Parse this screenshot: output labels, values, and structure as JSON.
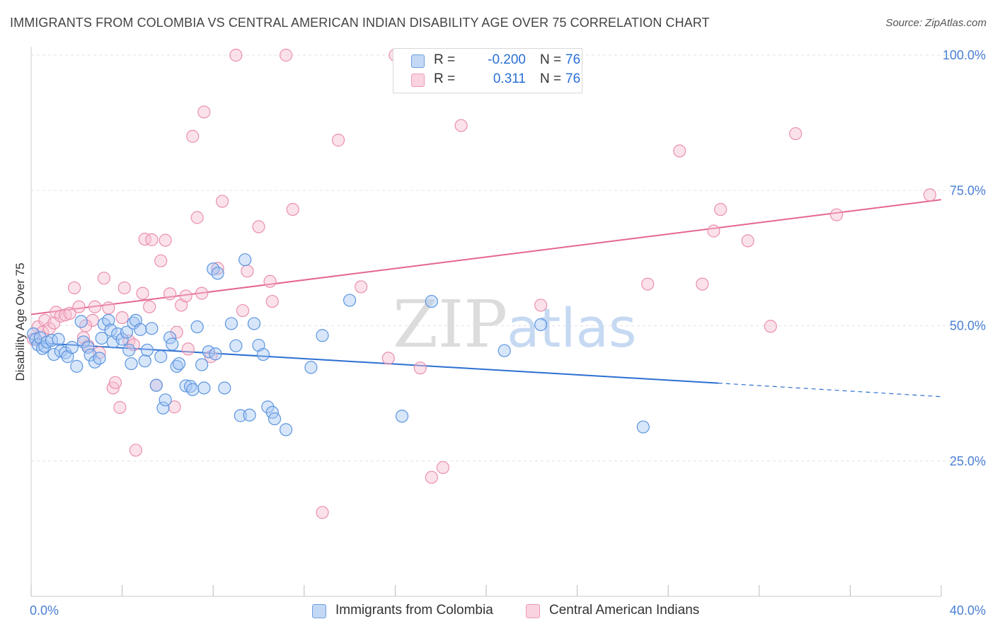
{
  "title": "IMMIGRANTS FROM COLOMBIA VS CENTRAL AMERICAN INDIAN DISABILITY AGE OVER 75 CORRELATION CHART",
  "source": "Source: ZipAtlas.com",
  "watermark": {
    "zip": "ZIP",
    "atlas": "atlas"
  },
  "legend": {
    "rows": [
      {
        "r_label": "R =",
        "r_value": "-0.200",
        "n_label": "N =",
        "n_value": "76"
      },
      {
        "r_label": "R =",
        "r_value": "0.311",
        "n_label": "N =",
        "n_value": "76"
      }
    ]
  },
  "bottom_legend": [
    "Immigrants from Colombia",
    "Central American Indians"
  ],
  "colors": {
    "blue_fill": "#a9c8f3",
    "blue_stroke": "#5b95df",
    "blue_line": "#2d6fd2",
    "pink_fill": "#f7bfd1",
    "pink_stroke": "#ea8fae",
    "pink_line": "#e4668f",
    "tick_text": "#4a7fd4",
    "grid": "#e3e3e3"
  },
  "chart_data": {
    "type": "scatter",
    "title": "IMMIGRANTS FROM COLOMBIA VS CENTRAL AMERICAN INDIAN DISABILITY AGE OVER 75 CORRELATION CHART",
    "xlabel": "",
    "ylabel": "Disability Age Over 75",
    "xlim": [
      0,
      40
    ],
    "ylim": [
      0,
      105
    ],
    "x_tick_labels": [
      "0.0%",
      "40.0%"
    ],
    "y_ticks": [
      25,
      50,
      75,
      100
    ],
    "y_tick_labels": [
      "25.0%",
      "50.0%",
      "75.0%",
      "100.0%"
    ],
    "grid": true,
    "legend_position": "top-center",
    "series": [
      {
        "name": "Immigrants from Colombia",
        "r": -0.2,
        "n": 76,
        "trend": {
          "x0": 0,
          "y0": 46.9,
          "x1": 30.2,
          "y1": 39.4,
          "dashed_to_x": 40,
          "dashed_to_y": 36.9
        },
        "points": [
          [
            0.1,
            48.5
          ],
          [
            0.2,
            47.5
          ],
          [
            0.3,
            46.5
          ],
          [
            0.4,
            47.8
          ],
          [
            0.5,
            45.8
          ],
          [
            0.6,
            46.2
          ],
          [
            0.7,
            47.0
          ],
          [
            0.9,
            47.3
          ],
          [
            1.0,
            44.7
          ],
          [
            1.2,
            47.5
          ],
          [
            1.3,
            45.3
          ],
          [
            1.5,
            45.0
          ],
          [
            1.6,
            44.3
          ],
          [
            1.8,
            46.0
          ],
          [
            2.0,
            42.5
          ],
          [
            2.2,
            50.8
          ],
          [
            2.3,
            47.0
          ],
          [
            2.5,
            46.0
          ],
          [
            2.6,
            44.6
          ],
          [
            2.8,
            43.3
          ],
          [
            3.0,
            44.0
          ],
          [
            3.1,
            47.7
          ],
          [
            3.2,
            50.3
          ],
          [
            3.4,
            51.0
          ],
          [
            3.5,
            49.2
          ],
          [
            3.6,
            47.0
          ],
          [
            3.8,
            48.5
          ],
          [
            4.0,
            47.5
          ],
          [
            4.2,
            48.8
          ],
          [
            4.3,
            45.5
          ],
          [
            4.4,
            43.0
          ],
          [
            4.5,
            50.5
          ],
          [
            4.6,
            51.0
          ],
          [
            4.8,
            49.3
          ],
          [
            5.0,
            43.5
          ],
          [
            5.1,
            45.5
          ],
          [
            5.3,
            49.5
          ],
          [
            5.5,
            39.0
          ],
          [
            5.7,
            44.3
          ],
          [
            5.8,
            34.8
          ],
          [
            5.9,
            36.3
          ],
          [
            6.1,
            47.8
          ],
          [
            6.2,
            46.6
          ],
          [
            6.4,
            42.5
          ],
          [
            6.5,
            43.0
          ],
          [
            6.8,
            38.9
          ],
          [
            7.0,
            38.8
          ],
          [
            7.1,
            38.2
          ],
          [
            7.3,
            49.8
          ],
          [
            7.5,
            42.8
          ],
          [
            7.6,
            38.5
          ],
          [
            7.8,
            45.2
          ],
          [
            8.0,
            60.5
          ],
          [
            8.1,
            44.8
          ],
          [
            8.2,
            59.7
          ],
          [
            8.5,
            38.5
          ],
          [
            8.8,
            50.4
          ],
          [
            9.0,
            46.3
          ],
          [
            9.2,
            33.4
          ],
          [
            9.4,
            62.2
          ],
          [
            9.6,
            33.5
          ],
          [
            9.8,
            50.4
          ],
          [
            10.0,
            46.4
          ],
          [
            10.2,
            44.7
          ],
          [
            10.4,
            35.0
          ],
          [
            10.6,
            34.0
          ],
          [
            10.7,
            32.8
          ],
          [
            11.2,
            30.8
          ],
          [
            12.3,
            42.3
          ],
          [
            12.8,
            48.2
          ],
          [
            14.0,
            54.7
          ],
          [
            16.3,
            33.3
          ],
          [
            17.6,
            54.5
          ],
          [
            20.8,
            45.4
          ],
          [
            22.4,
            50.2
          ],
          [
            26.9,
            31.3
          ]
        ]
      },
      {
        "name": "Central American Indians",
        "r": 0.311,
        "n": 76,
        "trend": {
          "x0": 0,
          "y0": 52.1,
          "x1": 40,
          "y1": 73.3
        },
        "points": [
          [
            0.1,
            47.5
          ],
          [
            0.3,
            49.8
          ],
          [
            0.5,
            48.8
          ],
          [
            0.6,
            51.0
          ],
          [
            0.8,
            49.5
          ],
          [
            1.0,
            50.5
          ],
          [
            1.1,
            52.5
          ],
          [
            1.3,
            51.8
          ],
          [
            1.5,
            52.0
          ],
          [
            1.7,
            52.3
          ],
          [
            1.9,
            57.0
          ],
          [
            2.1,
            53.5
          ],
          [
            2.3,
            47.8
          ],
          [
            2.5,
            46.3
          ],
          [
            2.7,
            51.0
          ],
          [
            2.8,
            53.5
          ],
          [
            3.0,
            45.0
          ],
          [
            3.2,
            58.8
          ],
          [
            3.4,
            53.3
          ],
          [
            3.6,
            38.5
          ],
          [
            3.7,
            39.5
          ],
          [
            3.9,
            34.9
          ],
          [
            4.1,
            57.0
          ],
          [
            4.3,
            47.2
          ],
          [
            4.5,
            46.5
          ],
          [
            4.6,
            27.0
          ],
          [
            4.9,
            56.0
          ],
          [
            5.0,
            66.0
          ],
          [
            5.2,
            53.5
          ],
          [
            5.3,
            65.9
          ],
          [
            5.5,
            39.0
          ],
          [
            5.7,
            62.0
          ],
          [
            5.9,
            65.8
          ],
          [
            6.1,
            55.9
          ],
          [
            6.3,
            35.0
          ],
          [
            6.4,
            48.8
          ],
          [
            6.6,
            53.8
          ],
          [
            6.8,
            55.5
          ],
          [
            7.1,
            85.0
          ],
          [
            7.3,
            70.0
          ],
          [
            7.5,
            56.0
          ],
          [
            7.6,
            89.5
          ],
          [
            7.9,
            44.3
          ],
          [
            8.2,
            60.6
          ],
          [
            8.4,
            73.0
          ],
          [
            9.0,
            100.0
          ],
          [
            9.3,
            52.8
          ],
          [
            9.5,
            60.1
          ],
          [
            10.0,
            68.3
          ],
          [
            10.5,
            58.2
          ],
          [
            10.6,
            54.5
          ],
          [
            11.2,
            100.0
          ],
          [
            11.5,
            71.5
          ],
          [
            12.8,
            15.5
          ],
          [
            13.5,
            84.3
          ],
          [
            14.5,
            57.2
          ],
          [
            15.7,
            44.0
          ],
          [
            16.0,
            100.0
          ],
          [
            17.1,
            42.2
          ],
          [
            17.6,
            22.0
          ],
          [
            18.1,
            23.8
          ],
          [
            18.9,
            87.0
          ],
          [
            22.4,
            53.8
          ],
          [
            27.1,
            57.7
          ],
          [
            28.5,
            82.3
          ],
          [
            29.5,
            57.7
          ],
          [
            30.0,
            67.5
          ],
          [
            30.3,
            71.5
          ],
          [
            31.5,
            65.7
          ],
          [
            32.5,
            49.9
          ],
          [
            33.6,
            85.5
          ],
          [
            35.4,
            70.5
          ],
          [
            39.5,
            74.2
          ],
          [
            4.0,
            51.5
          ],
          [
            6.9,
            45.7
          ],
          [
            2.4,
            50.0
          ]
        ]
      }
    ]
  }
}
